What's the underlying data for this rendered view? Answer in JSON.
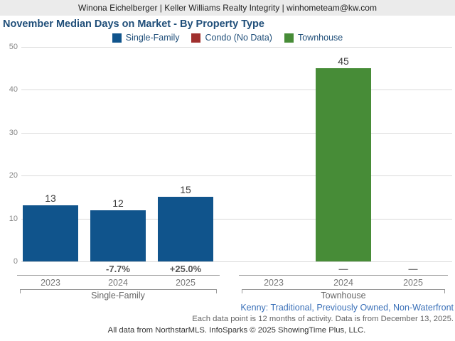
{
  "header": {
    "agent_line": "Winona Eichelberger | Keller Williams Realty Integrity | winhometeam@kw.com"
  },
  "title": "November Median Days on Market - By Property Type",
  "legend": [
    {
      "label": "Single-Family",
      "color": "#10548c"
    },
    {
      "label": "Condo (No Data)",
      "color": "#a0302e"
    },
    {
      "label": "Townhouse",
      "color": "#478c37"
    }
  ],
  "chart_data": {
    "type": "bar",
    "title": "November Median Days on Market - By Property Type",
    "xlabel": "",
    "ylabel": "",
    "ylim": [
      0,
      50
    ],
    "yticks": [
      0,
      10,
      20,
      30,
      40,
      50
    ],
    "grid": true,
    "legend_position": "top",
    "groups": [
      {
        "label": "Single-Family",
        "color": "#10548c",
        "years": [
          "2023",
          "2024",
          "2025"
        ],
        "values": [
          13,
          12,
          15
        ],
        "changes": [
          "",
          "-7.7%",
          "+25.0%"
        ]
      },
      {
        "label": "Townhouse",
        "color": "#478c37",
        "years": [
          "2023",
          "2024",
          "2025"
        ],
        "values": [
          null,
          45,
          null
        ],
        "changes": [
          "",
          "—",
          "—"
        ]
      }
    ],
    "series_with_no_data": [
      "Condo"
    ]
  },
  "footnotes": {
    "filters": "Kenny: Traditional, Previously Owned, Non-Waterfront",
    "data_note": "Each data point is 12 months of activity. Data is from December 13, 2025.",
    "attribution": "All data from NorthstarMLS. InfoSparks © 2025 ShowingTime Plus, LLC."
  },
  "colors": {
    "title_navy": "#1f4e79",
    "link_blue": "#3a70b8",
    "header_band": "#ebebeb",
    "gridline": "#d9d9d9",
    "axis": "#999999"
  }
}
